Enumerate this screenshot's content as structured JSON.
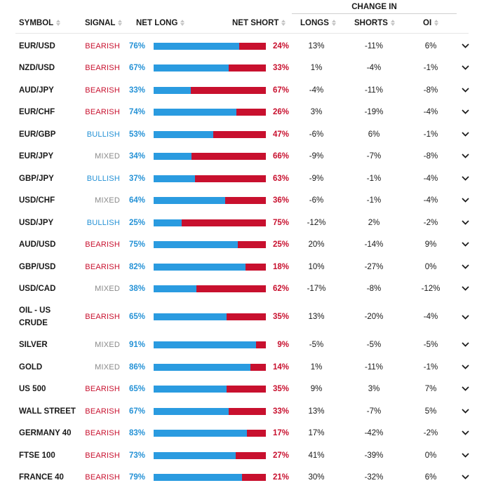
{
  "header": {
    "change_in": "CHANGE IN",
    "symbol": "SYMBOL",
    "signal": "SIGNAL",
    "net_long": "NET LONG",
    "net_short": "NET SHORT",
    "longs": "LONGS",
    "shorts": "SHORTS",
    "oi": "OI"
  },
  "colors": {
    "bearish": "#c8102e",
    "bullish": "#2592d6",
    "mixed": "#8a8a8a",
    "long_bar": "#2a9be0",
    "short_bar": "#c8102e"
  },
  "icons": {
    "sort": "sort-icon",
    "expand": "chevron-down-icon"
  },
  "rows": [
    {
      "symbol": "EUR/USD",
      "signal": "BEARISH",
      "net_long": "76%",
      "net_short": "24%",
      "long_pct": 76,
      "longs": "13%",
      "shorts": "-11%",
      "oi": "6%"
    },
    {
      "symbol": "NZD/USD",
      "signal": "BEARISH",
      "net_long": "67%",
      "net_short": "33%",
      "long_pct": 67,
      "longs": "1%",
      "shorts": "-4%",
      "oi": "-1%"
    },
    {
      "symbol": "AUD/JPY",
      "signal": "BEARISH",
      "net_long": "33%",
      "net_short": "67%",
      "long_pct": 33,
      "longs": "-4%",
      "shorts": "-11%",
      "oi": "-8%"
    },
    {
      "symbol": "EUR/CHF",
      "signal": "BEARISH",
      "net_long": "74%",
      "net_short": "26%",
      "long_pct": 74,
      "longs": "3%",
      "shorts": "-19%",
      "oi": "-4%"
    },
    {
      "symbol": "EUR/GBP",
      "signal": "BULLISH",
      "net_long": "53%",
      "net_short": "47%",
      "long_pct": 53,
      "longs": "-6%",
      "shorts": "6%",
      "oi": "-1%"
    },
    {
      "symbol": "EUR/JPY",
      "signal": "MIXED",
      "net_long": "34%",
      "net_short": "66%",
      "long_pct": 34,
      "longs": "-9%",
      "shorts": "-7%",
      "oi": "-8%"
    },
    {
      "symbol": "GBP/JPY",
      "signal": "BULLISH",
      "net_long": "37%",
      "net_short": "63%",
      "long_pct": 37,
      "longs": "-9%",
      "shorts": "-1%",
      "oi": "-4%"
    },
    {
      "symbol": "USD/CHF",
      "signal": "MIXED",
      "net_long": "64%",
      "net_short": "36%",
      "long_pct": 64,
      "longs": "-6%",
      "shorts": "-1%",
      "oi": "-4%"
    },
    {
      "symbol": "USD/JPY",
      "signal": "BULLISH",
      "net_long": "25%",
      "net_short": "75%",
      "long_pct": 25,
      "longs": "-12%",
      "shorts": "2%",
      "oi": "-2%"
    },
    {
      "symbol": "AUD/USD",
      "signal": "BEARISH",
      "net_long": "75%",
      "net_short": "25%",
      "long_pct": 75,
      "longs": "20%",
      "shorts": "-14%",
      "oi": "9%"
    },
    {
      "symbol": "GBP/USD",
      "signal": "BEARISH",
      "net_long": "82%",
      "net_short": "18%",
      "long_pct": 82,
      "longs": "10%",
      "shorts": "-27%",
      "oi": "0%"
    },
    {
      "symbol": "USD/CAD",
      "signal": "MIXED",
      "net_long": "38%",
      "net_short": "62%",
      "long_pct": 38,
      "longs": "-17%",
      "shorts": "-8%",
      "oi": "-12%"
    },
    {
      "symbol": "OIL - US CRUDE",
      "signal": "BEARISH",
      "net_long": "65%",
      "net_short": "35%",
      "long_pct": 65,
      "longs": "13%",
      "shorts": "-20%",
      "oi": "-4%"
    },
    {
      "symbol": "SILVER",
      "signal": "MIXED",
      "net_long": "91%",
      "net_short": "9%",
      "long_pct": 91,
      "longs": "-5%",
      "shorts": "-5%",
      "oi": "-5%"
    },
    {
      "symbol": "GOLD",
      "signal": "MIXED",
      "net_long": "86%",
      "net_short": "14%",
      "long_pct": 86,
      "longs": "1%",
      "shorts": "-11%",
      "oi": "-1%"
    },
    {
      "symbol": "US 500",
      "signal": "BEARISH",
      "net_long": "65%",
      "net_short": "35%",
      "long_pct": 65,
      "longs": "9%",
      "shorts": "3%",
      "oi": "7%"
    },
    {
      "symbol": "WALL STREET",
      "signal": "BEARISH",
      "net_long": "67%",
      "net_short": "33%",
      "long_pct": 67,
      "longs": "13%",
      "shorts": "-7%",
      "oi": "5%"
    },
    {
      "symbol": "GERMANY 40",
      "signal": "BEARISH",
      "net_long": "83%",
      "net_short": "17%",
      "long_pct": 83,
      "longs": "17%",
      "shorts": "-42%",
      "oi": "-2%"
    },
    {
      "symbol": "FTSE 100",
      "signal": "BEARISH",
      "net_long": "73%",
      "net_short": "27%",
      "long_pct": 73,
      "longs": "41%",
      "shorts": "-39%",
      "oi": "0%"
    },
    {
      "symbol": "FRANCE 40",
      "signal": "BEARISH",
      "net_long": "79%",
      "net_short": "21%",
      "long_pct": 79,
      "longs": "30%",
      "shorts": "-32%",
      "oi": "6%"
    }
  ]
}
